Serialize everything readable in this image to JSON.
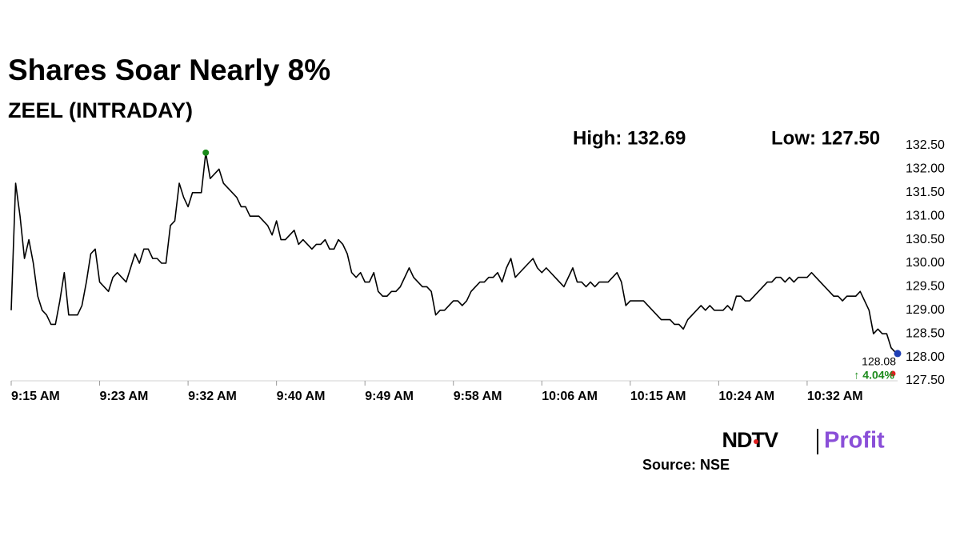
{
  "chart_data": {
    "type": "line",
    "title": "Shares Soar Nearly 8%",
    "subtitle": "ZEEL (INTRADAY)",
    "stats": [
      "High: 132.69",
      "Low: 127.50"
    ],
    "values": [
      129.0,
      131.7,
      131.0,
      130.1,
      130.5,
      130.0,
      129.3,
      129.0,
      128.9,
      128.7,
      128.7,
      129.2,
      129.8,
      128.9,
      128.9,
      128.9,
      129.1,
      129.6,
      130.2,
      130.3,
      129.6,
      129.5,
      129.4,
      129.7,
      129.8,
      129.7,
      129.6,
      129.9,
      130.2,
      130.0,
      130.3,
      130.3,
      130.1,
      130.1,
      130.0,
      130.0,
      130.8,
      130.9,
      131.7,
      131.4,
      131.2,
      131.5,
      131.5,
      131.5,
      132.35,
      131.8,
      131.9,
      132.0,
      131.7,
      131.6,
      131.5,
      131.4,
      131.2,
      131.2,
      131.0,
      131.0,
      131.0,
      130.9,
      130.8,
      130.6,
      130.9,
      130.5,
      130.5,
      130.6,
      130.7,
      130.4,
      130.5,
      130.4,
      130.3,
      130.4,
      130.4,
      130.5,
      130.3,
      130.3,
      130.5,
      130.4,
      130.2,
      129.8,
      129.7,
      129.8,
      129.6,
      129.6,
      129.8,
      129.4,
      129.3,
      129.3,
      129.4,
      129.4,
      129.5,
      129.7,
      129.9,
      129.7,
      129.6,
      129.5,
      129.5,
      129.4,
      128.9,
      129.0,
      129.0,
      129.1,
      129.2,
      129.2,
      129.1,
      129.2,
      129.4,
      129.5,
      129.6,
      129.6,
      129.7,
      129.7,
      129.8,
      129.6,
      129.9,
      130.1,
      129.7,
      129.8,
      129.9,
      130.0,
      130.1,
      129.9,
      129.8,
      129.9,
      129.8,
      129.7,
      129.6,
      129.5,
      129.7,
      129.9,
      129.6,
      129.6,
      129.5,
      129.6,
      129.5,
      129.6,
      129.6,
      129.6,
      129.7,
      129.8,
      129.6,
      129.1,
      129.2,
      129.2,
      129.2,
      129.2,
      129.1,
      129.0,
      128.9,
      128.8,
      128.8,
      128.8,
      128.7,
      128.7,
      128.6,
      128.8,
      128.9,
      129.0,
      129.1,
      129.0,
      129.1,
      129.0,
      129.0,
      129.0,
      129.1,
      129.0,
      129.3,
      129.3,
      129.2,
      129.2,
      129.3,
      129.4,
      129.5,
      129.6,
      129.6,
      129.7,
      129.7,
      129.6,
      129.7,
      129.6,
      129.7,
      129.7,
      129.7,
      129.8,
      129.7,
      129.6,
      129.5,
      129.4,
      129.3,
      129.3,
      129.2,
      129.3,
      129.3,
      129.3,
      129.4,
      129.2,
      129.0,
      128.5,
      128.6,
      128.5,
      128.5,
      128.2,
      128.1,
      128.08
    ],
    "color": "#000000",
    "xlim": [
      0,
      201
    ],
    "xticks": [
      {
        "value": 0,
        "label": "9:15 AM"
      },
      {
        "value": 20,
        "label": "9:23 AM"
      },
      {
        "value": 40,
        "label": "9:32 AM"
      },
      {
        "value": 60,
        "label": "9:40 AM"
      },
      {
        "value": 80,
        "label": "9:49 AM"
      },
      {
        "value": 100,
        "label": "9:58 AM"
      },
      {
        "value": 120,
        "label": "10:06 AM"
      },
      {
        "value": 140,
        "label": "10:15 AM"
      },
      {
        "value": 160,
        "label": "10:24 AM"
      },
      {
        "value": 180,
        "label": "10:32 AM"
      }
    ],
    "ylim": [
      127.5,
      132.5
    ],
    "yticks": [
      {
        "value": 127.5,
        "label": "127.50"
      },
      {
        "value": 128,
        "label": "128.00"
      },
      {
        "value": 128.5,
        "label": "128.50"
      },
      {
        "value": 129,
        "label": "129.00"
      },
      {
        "value": 129.5,
        "label": "129.50"
      },
      {
        "value": 130,
        "label": "130.00"
      },
      {
        "value": 130.5,
        "label": "130.50"
      },
      {
        "value": 131,
        "label": "131.00"
      },
      {
        "value": 131.5,
        "label": "131.50"
      },
      {
        "value": 132,
        "label": "132.00"
      },
      {
        "value": 132.5,
        "label": "132.50"
      }
    ],
    "end_label": "128.08",
    "change_label": "↑ 4.04%",
    "high_color": "#1a8a1a",
    "end_color": "#1f3fb5",
    "change_color": "#1a8a1a",
    "grid": false
  },
  "logo": {
    "left": "NDTV",
    "right": "Profit"
  },
  "source": "Source: NSE"
}
